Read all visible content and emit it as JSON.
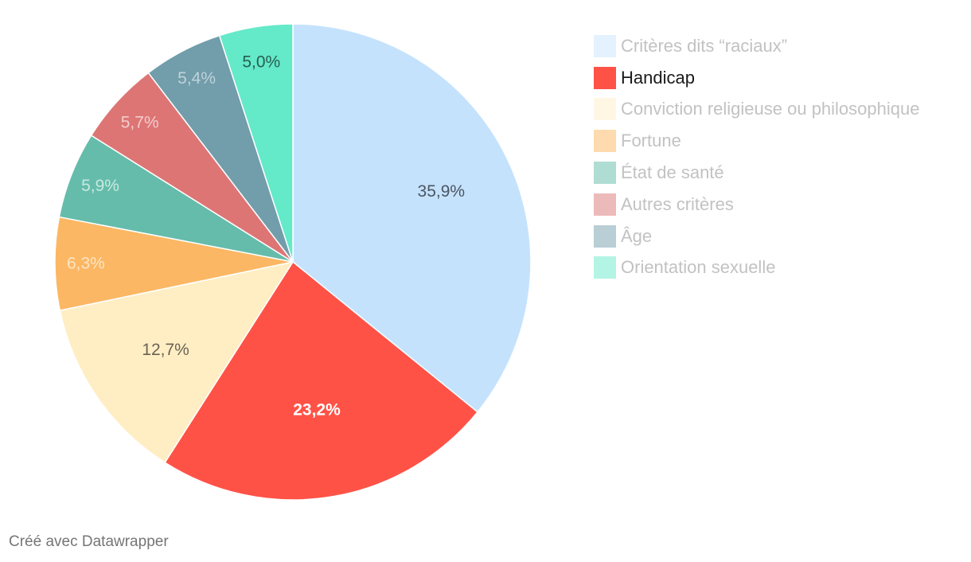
{
  "chart_data": {
    "type": "pie",
    "highlight": "Handicap",
    "slices": [
      {
        "label": "Critères dits “raciaux”",
        "value": 35.9,
        "display": "35,9%",
        "color": "#c5e2fd",
        "legend_color": "#e4f1fe",
        "label_color": "#4a5561"
      },
      {
        "label": "Handicap",
        "value": 23.2,
        "display": "23,2%",
        "color": "#ff5247",
        "legend_color": "#ff5247",
        "label_color": "#ffffff"
      },
      {
        "label": "Conviction religieuse ou philosophique",
        "value": 12.7,
        "display": "12,7%",
        "color": "#ffeec4",
        "legend_color": "#fff7e4",
        "label_color": "#6b6354"
      },
      {
        "label": "Fortune",
        "value": 6.3,
        "display": "6,3%",
        "color": "#fbb763",
        "legend_color": "#fddbae",
        "label_color": "#fde4c4"
      },
      {
        "label": "État de santé",
        "value": 5.9,
        "display": "5,9%",
        "color": "#65bcaa",
        "legend_color": "#b0ddd3",
        "label_color": "#c8e9e2"
      },
      {
        "label": "Autres critères",
        "value": 5.7,
        "display": "5,7%",
        "color": "#dd7575",
        "legend_color": "#edbaba",
        "label_color": "#f4cccc"
      },
      {
        "label": "Âge",
        "value": 5.4,
        "display": "5,4%",
        "color": "#729dab",
        "legend_color": "#b9ced5",
        "label_color": "#bfd3da"
      },
      {
        "label": "Orientation sexuelle",
        "value": 5.0,
        "display": "5,0%",
        "color": "#64e9c9",
        "legend_color": "#b3f4e4",
        "label_color": "#275e50"
      }
    ]
  },
  "footer": {
    "credit": "Créé avec Datawrapper"
  }
}
